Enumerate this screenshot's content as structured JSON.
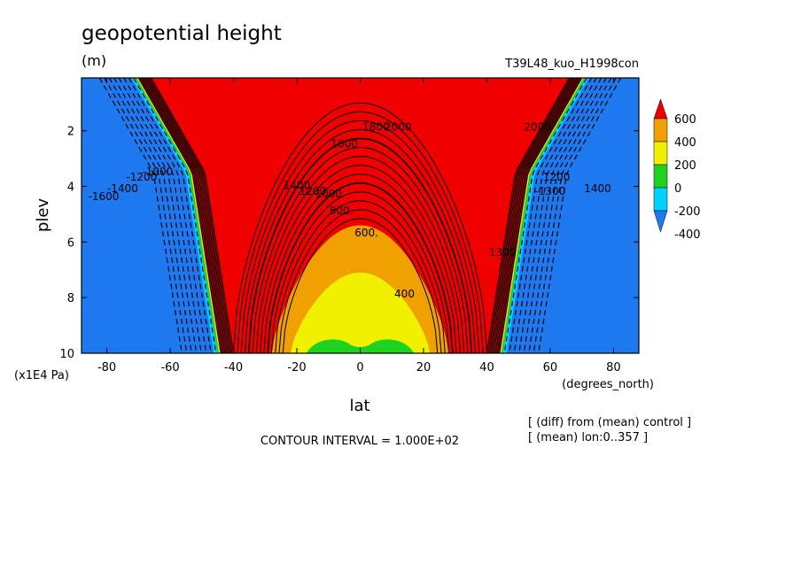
{
  "header": {
    "title": "geopotential height",
    "units": "(m)",
    "run": "T39L48_kuo_H1998con"
  },
  "footer": {
    "contour_interval": "CONTOUR INTERVAL = 1.000E+02",
    "note1": "[ (diff) from (mean) control ]",
    "note2": "[ (mean) lon:0..357 ]"
  },
  "chart_data": {
    "type": "heatmap",
    "title": "geopotential height",
    "xlabel": "lat",
    "xlabel_unit": "(degrees_north)",
    "ylabel": "plev",
    "ylabel_unit": "(x1E4 Pa)",
    "xlim": [
      -88,
      88
    ],
    "ylim": [
      10,
      0.1
    ],
    "x_ticks": [
      -80,
      -60,
      -40,
      -20,
      0,
      20,
      40,
      60,
      80
    ],
    "x_tick_labels": [
      "-80",
      "-60",
      "-40",
      "-20",
      "0",
      "20",
      "40",
      "60",
      "80"
    ],
    "y_ticks": [
      2,
      4,
      6,
      8,
      10
    ],
    "y_tick_labels": [
      "2",
      "4",
      "6",
      "8",
      "10"
    ],
    "colorbar": {
      "labels": [
        "600",
        "400",
        "200",
        "0",
        "-200",
        "-400"
      ],
      "levels": [
        -400,
        -200,
        0,
        200,
        400,
        600
      ],
      "colors": [
        "#1e78f0",
        "#00d2ff",
        "#20d220",
        "#f0f000",
        "#f0a000",
        "#f00000"
      ]
    },
    "contour_labels": [
      {
        "text": "2000",
        "x": 12,
        "y": 2.0
      },
      {
        "text": "1800",
        "x": 5,
        "y": 2.0
      },
      {
        "text": "1600",
        "x": -5,
        "y": 2.6
      },
      {
        "text": "1400",
        "x": -20,
        "y": 4.1
      },
      {
        "text": "1200",
        "x": -15,
        "y": 4.3
      },
      {
        "text": "1000",
        "x": -10,
        "y": 4.4
      },
      {
        "text": "800.",
        "x": -6,
        "y": 5.0
      },
      {
        "text": "600.",
        "x": 2,
        "y": 5.8
      },
      {
        "text": "400",
        "x": 14,
        "y": 8.0
      },
      {
        "text": "-1600",
        "x": -81,
        "y": 4.5
      },
      {
        "text": "-1400",
        "x": -75,
        "y": 4.2
      },
      {
        "text": "-1200",
        "x": -69,
        "y": 3.8
      },
      {
        "text": "-1000",
        "x": -64,
        "y": 3.6
      },
      {
        "text": "2000",
        "x": 56,
        "y": 2.0
      },
      {
        "text": "1400",
        "x": 75,
        "y": 4.2
      },
      {
        "text": "1200",
        "x": 62,
        "y": 3.8
      },
      {
        "text": "-1300",
        "x": 60,
        "y": 4.3
      },
      {
        "text": "1300",
        "x": 45,
        "y": 6.5
      }
    ]
  }
}
